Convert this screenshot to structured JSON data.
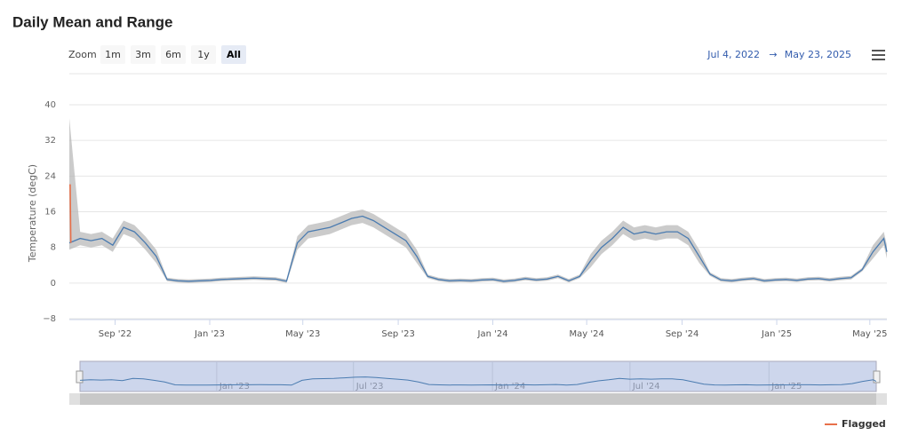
{
  "chart_data": {
    "type": "line",
    "title": "Daily Mean and Range",
    "zoom_label": "Zoom",
    "zoom_buttons": [
      "1m",
      "3m",
      "6m",
      "1y",
      "All"
    ],
    "selected_zoom": 4,
    "range_from": "Jul 4, 2022",
    "range_to": "May 23, 2025",
    "range_arrow": "→",
    "y_label": "Temperature (degC)",
    "ylim": [
      -8,
      40
    ],
    "yticks": [
      {
        "value": -8,
        "label": "−8"
      },
      0,
      8,
      16,
      24,
      32,
      40
    ],
    "grid": true,
    "xlim": [
      "2022-07-04",
      "2025-05-23"
    ],
    "xticks": [
      {
        "value": "2022-09-01",
        "label": "Sep '22"
      },
      {
        "value": "2023-01-01",
        "label": "Jan '23"
      },
      {
        "value": "2023-05-01",
        "label": "May '23"
      },
      {
        "value": "2023-09-01",
        "label": "Sep '23"
      },
      {
        "value": "2024-01-01",
        "label": "Jan '24"
      },
      {
        "value": "2024-05-01",
        "label": "May '24"
      },
      {
        "value": "2024-09-01",
        "label": "Sep '24"
      },
      {
        "value": "2025-01-01",
        "label": "Jan '25"
      },
      {
        "value": "2025-05-01",
        "label": "May '25"
      }
    ],
    "navigator_xticks": [
      {
        "value": "2023-01-01",
        "label": "Jan '23"
      },
      {
        "value": "2023-07-01",
        "label": "Jul '23"
      },
      {
        "value": "2024-01-01",
        "label": "Jan '24"
      },
      {
        "value": "2024-07-01",
        "label": "Jul '24"
      },
      {
        "value": "2025-01-01",
        "label": "Jan '25"
      }
    ],
    "x": [
      "2022-07-04",
      "2022-07-18",
      "2022-08-01",
      "2022-08-15",
      "2022-08-29",
      "2022-09-12",
      "2022-09-26",
      "2022-10-10",
      "2022-10-24",
      "2022-11-07",
      "2022-11-21",
      "2022-12-05",
      "2022-12-19",
      "2023-01-02",
      "2023-01-16",
      "2023-01-30",
      "2023-02-13",
      "2023-02-27",
      "2023-03-13",
      "2023-03-27",
      "2023-04-10",
      "2023-04-24",
      "2023-05-08",
      "2023-05-22",
      "2023-06-05",
      "2023-06-19",
      "2023-07-03",
      "2023-07-17",
      "2023-07-31",
      "2023-08-14",
      "2023-08-28",
      "2023-09-11",
      "2023-09-25",
      "2023-10-09",
      "2023-10-23",
      "2023-11-06",
      "2023-11-20",
      "2023-12-04",
      "2023-12-18",
      "2024-01-01",
      "2024-01-15",
      "2024-01-29",
      "2024-02-12",
      "2024-02-26",
      "2024-03-11",
      "2024-03-25",
      "2024-04-08",
      "2024-04-22",
      "2024-05-06",
      "2024-05-20",
      "2024-06-03",
      "2024-06-17",
      "2024-07-01",
      "2024-07-15",
      "2024-07-29",
      "2024-08-12",
      "2024-08-26",
      "2024-09-09",
      "2024-09-23",
      "2024-10-07",
      "2024-10-21",
      "2024-11-04",
      "2024-11-18",
      "2024-12-02",
      "2024-12-16",
      "2024-12-30",
      "2025-01-13",
      "2025-01-27",
      "2025-02-10",
      "2025-02-24",
      "2025-03-10",
      "2025-03-24",
      "2025-04-07",
      "2025-04-21",
      "2025-05-05",
      "2025-05-19",
      "2025-05-23"
    ],
    "mean": {
      "color": "#4a7bb0",
      "values": [
        9,
        10,
        9.5,
        10,
        8.5,
        12.5,
        11.5,
        9,
        6,
        0.8,
        0.5,
        0.4,
        0.5,
        0.6,
        0.8,
        0.9,
        1,
        1.1,
        1,
        0.9,
        0.4,
        9,
        11.5,
        12,
        12.5,
        13.5,
        14.5,
        15,
        14,
        12.5,
        11,
        9.5,
        6,
        1.5,
        0.8,
        0.5,
        0.6,
        0.5,
        0.7,
        0.8,
        0.4,
        0.6,
        1,
        0.7,
        0.9,
        1.5,
        0.5,
        1.5,
        5,
        8,
        10,
        12.5,
        11,
        11.5,
        11,
        11.5,
        11.5,
        10,
        6,
        2,
        0.7,
        0.5,
        0.8,
        1,
        0.5,
        0.7,
        0.8,
        0.6,
        0.9,
        1,
        0.7,
        1,
        1.2,
        3,
        7,
        10,
        7
      ]
    },
    "range": {
      "color": "#b5b5b5",
      "high": [
        37,
        11.5,
        11,
        11.5,
        10,
        14,
        13,
        10.5,
        7.5,
        1.2,
        0.9,
        0.8,
        0.9,
        1,
        1.2,
        1.3,
        1.4,
        1.5,
        1.4,
        1.3,
        0.8,
        10.5,
        13,
        13.5,
        14,
        15,
        16,
        16.5,
        15.5,
        14,
        12.5,
        11,
        7.5,
        1.9,
        1.2,
        0.9,
        1,
        0.9,
        1.1,
        1.2,
        0.8,
        1,
        1.4,
        1.1,
        1.3,
        1.9,
        0.9,
        1.9,
        6.5,
        9.5,
        11.5,
        14,
        12.5,
        13,
        12.5,
        13,
        13,
        11.5,
        7.5,
        2.4,
        1.1,
        0.9,
        1.2,
        1.4,
        0.9,
        1.1,
        1.2,
        1,
        1.3,
        1.4,
        1.1,
        1.4,
        1.6,
        3.4,
        8.5,
        11.5,
        8.5
      ],
      "low": [
        7.5,
        8.5,
        8,
        8.5,
        7,
        11,
        10,
        7.5,
        4.5,
        0.4,
        0.1,
        0,
        0.1,
        0.2,
        0.4,
        0.5,
        0.6,
        0.7,
        0.6,
        0.5,
        0,
        7.5,
        10,
        10.5,
        11,
        12,
        13,
        13.5,
        12.5,
        11,
        9.5,
        8,
        4.5,
        1.1,
        0.4,
        0.1,
        0.2,
        0.1,
        0.3,
        0.4,
        0,
        0.2,
        0.6,
        0.3,
        0.5,
        1.1,
        0.1,
        1.1,
        3.5,
        6.5,
        8.5,
        11,
        9.5,
        10,
        9.5,
        10,
        10,
        8.5,
        4.5,
        1.6,
        0.3,
        0.1,
        0.4,
        0.6,
        0.1,
        0.3,
        0.4,
        0.2,
        0.5,
        0.6,
        0.3,
        0.6,
        0.8,
        2.6,
        5.5,
        8.5,
        5.5
      ]
    },
    "flagged": {
      "name": "Flagged",
      "color": "#e8704a",
      "x": [
        "2022-07-04",
        "2022-07-05",
        "2022-07-06"
      ],
      "values": [
        22,
        22,
        9
      ]
    }
  }
}
